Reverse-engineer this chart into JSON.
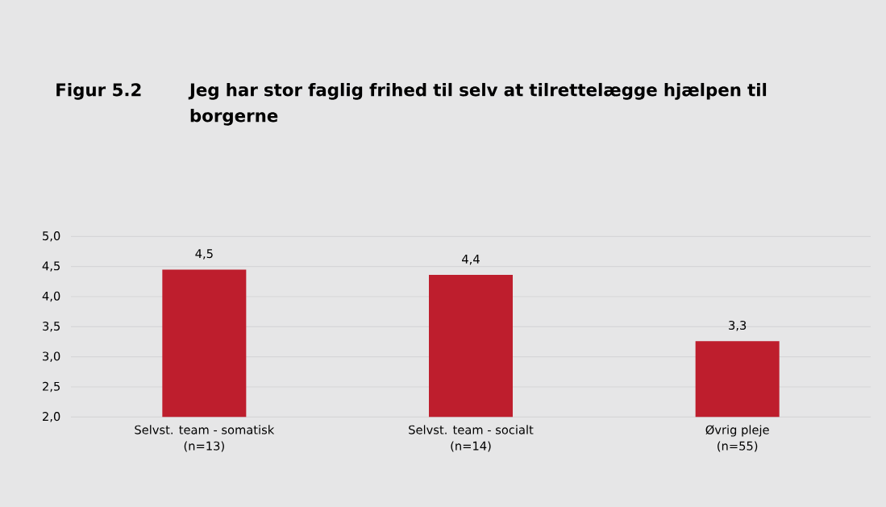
{
  "chart_data": {
    "type": "bar",
    "title": "Jeg har stor faglig frihed til selv at tilrettelægge hjælpen til borgerne",
    "annotations": [
      "Figur 5.2"
    ],
    "categories": [
      "Selvst. team - somatisk\n(n=13)",
      "Selvst. team - socialt\n(n=14)",
      "Øvrig pleje\n(n=55)"
    ],
    "values": [
      4.45,
      4.36,
      3.26
    ],
    "value_labels": [
      "4,5",
      "4,4",
      "3,3"
    ],
    "color": "#be1e2d",
    "ylim": [
      2,
      5
    ],
    "yticks": [
      {
        "value": 2,
        "label": "2,0"
      },
      {
        "value": 2.5,
        "label": "2,5"
      },
      {
        "value": 3,
        "label": "3,0"
      },
      {
        "value": 3.5,
        "label": "3,5"
      },
      {
        "value": 4,
        "label": "4,0"
      },
      {
        "value": 4.5,
        "label": "4,5"
      },
      {
        "value": 5,
        "label": "5,0"
      }
    ],
    "grid": "y"
  }
}
